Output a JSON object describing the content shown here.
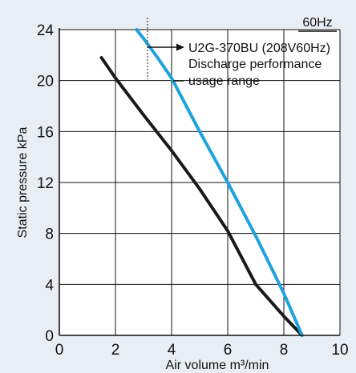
{
  "chart_data": {
    "type": "line",
    "corner_label": "60Hz",
    "xlabel": "Air volume m³/min",
    "ylabel": "Static pressure kPa",
    "xlim": [
      0,
      10
    ],
    "ylim": [
      0,
      24
    ],
    "x_ticks": [
      "0",
      "2",
      "4",
      "6",
      "8",
      "10"
    ],
    "y_ticks": [
      "0",
      "4",
      "8",
      "12",
      "16",
      "20",
      "24"
    ],
    "grid": true,
    "series": [
      {
        "name": "U2G-370BU (208V60Hz) Discharge performance",
        "color": "#1a1a1a",
        "x": [
          1.5,
          2.0,
          3.0,
          4.0,
          5.0,
          6.0,
          7.0,
          8.0,
          8.65
        ],
        "y": [
          21.8,
          20.2,
          17.3,
          14.5,
          11.5,
          8.2,
          4.0,
          1.5,
          0.0
        ]
      },
      {
        "name": "usage range",
        "color": "#1fa2de",
        "x": [
          2.75,
          3.0,
          3.5,
          4.0,
          5.0,
          6.0,
          7.0,
          8.0,
          8.65
        ],
        "y": [
          24.0,
          23.3,
          21.8,
          20.2,
          16.0,
          12.0,
          7.8,
          3.3,
          0.0
        ]
      }
    ],
    "annotation": {
      "line1": "U2G-370BU (208V60Hz)",
      "line2": "Discharge performance",
      "line3": "usage range"
    }
  }
}
